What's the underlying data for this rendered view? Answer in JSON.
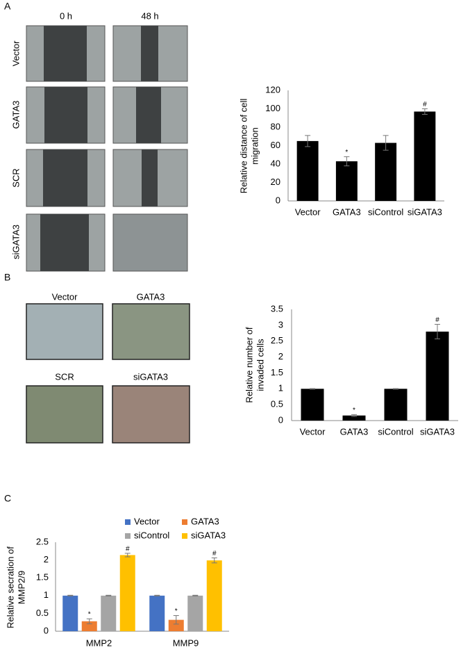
{
  "panel_a": {
    "label": "A",
    "columns": [
      "0 h",
      "48 h"
    ],
    "rows": [
      "Vector",
      "GATA3",
      "SCR",
      "siGATA3"
    ]
  },
  "panel_b": {
    "label": "B",
    "images": [
      "Vector",
      "GATA3",
      "SCR",
      "siGATA3"
    ]
  },
  "panel_c": {
    "label": "C"
  },
  "chart_data": [
    {
      "type": "bar",
      "ylabel": [
        "Relative distance of cell",
        "migration"
      ],
      "categories": [
        "Vector",
        "GATA3",
        "siControl",
        "siGATA3"
      ],
      "values": [
        65,
        43,
        63,
        97
      ],
      "errors": [
        6,
        5,
        8,
        3
      ],
      "annotations": [
        null,
        "*",
        null,
        "#"
      ],
      "color": "#000000",
      "ylim": [
        0,
        120
      ],
      "yticks": [
        0,
        20,
        40,
        60,
        80,
        100,
        120
      ],
      "grid": false
    },
    {
      "type": "bar",
      "ylabel": [
        "Relative number of",
        "invaded cells"
      ],
      "categories": [
        "Vector",
        "GATA3",
        "siControl",
        "siGATA3"
      ],
      "values": [
        1,
        0.16,
        1,
        2.8
      ],
      "errors": [
        0.01,
        0.03,
        0.01,
        0.23
      ],
      "annotations": [
        null,
        "*",
        null,
        "#"
      ],
      "color": "#000000",
      "ylim": [
        0,
        3.5
      ],
      "yticks": [
        0,
        0.5,
        1,
        1.5,
        2,
        2.5,
        3,
        3.5
      ],
      "grid": false
    },
    {
      "type": "bar",
      "ylabel": [
        "Relative secration of",
        "MMP2/9"
      ],
      "categories": [
        "MMP2",
        "MMP9"
      ],
      "series": [
        {
          "name": "Vector",
          "color": "#4472c4",
          "values": [
            1,
            1
          ],
          "errors": [
            0.01,
            0.01
          ]
        },
        {
          "name": "GATA3",
          "color": "#ed7d31",
          "values": [
            0.28,
            0.32
          ],
          "errors": [
            0.07,
            0.12
          ],
          "annotations": [
            "*",
            "*"
          ]
        },
        {
          "name": "siControl",
          "color": "#a5a5a5",
          "values": [
            1,
            1
          ],
          "errors": [
            0.01,
            0.01
          ]
        },
        {
          "name": "siGATA3",
          "color": "#ffc000",
          "values": [
            2.14,
            1.99
          ],
          "errors": [
            0.05,
            0.07
          ],
          "annotations": [
            "#",
            "#"
          ]
        }
      ],
      "ylim": [
        0,
        2.5
      ],
      "yticks": [
        0,
        0.5,
        1,
        1.5,
        2,
        2.5
      ],
      "grid": false,
      "legend": "top"
    }
  ]
}
